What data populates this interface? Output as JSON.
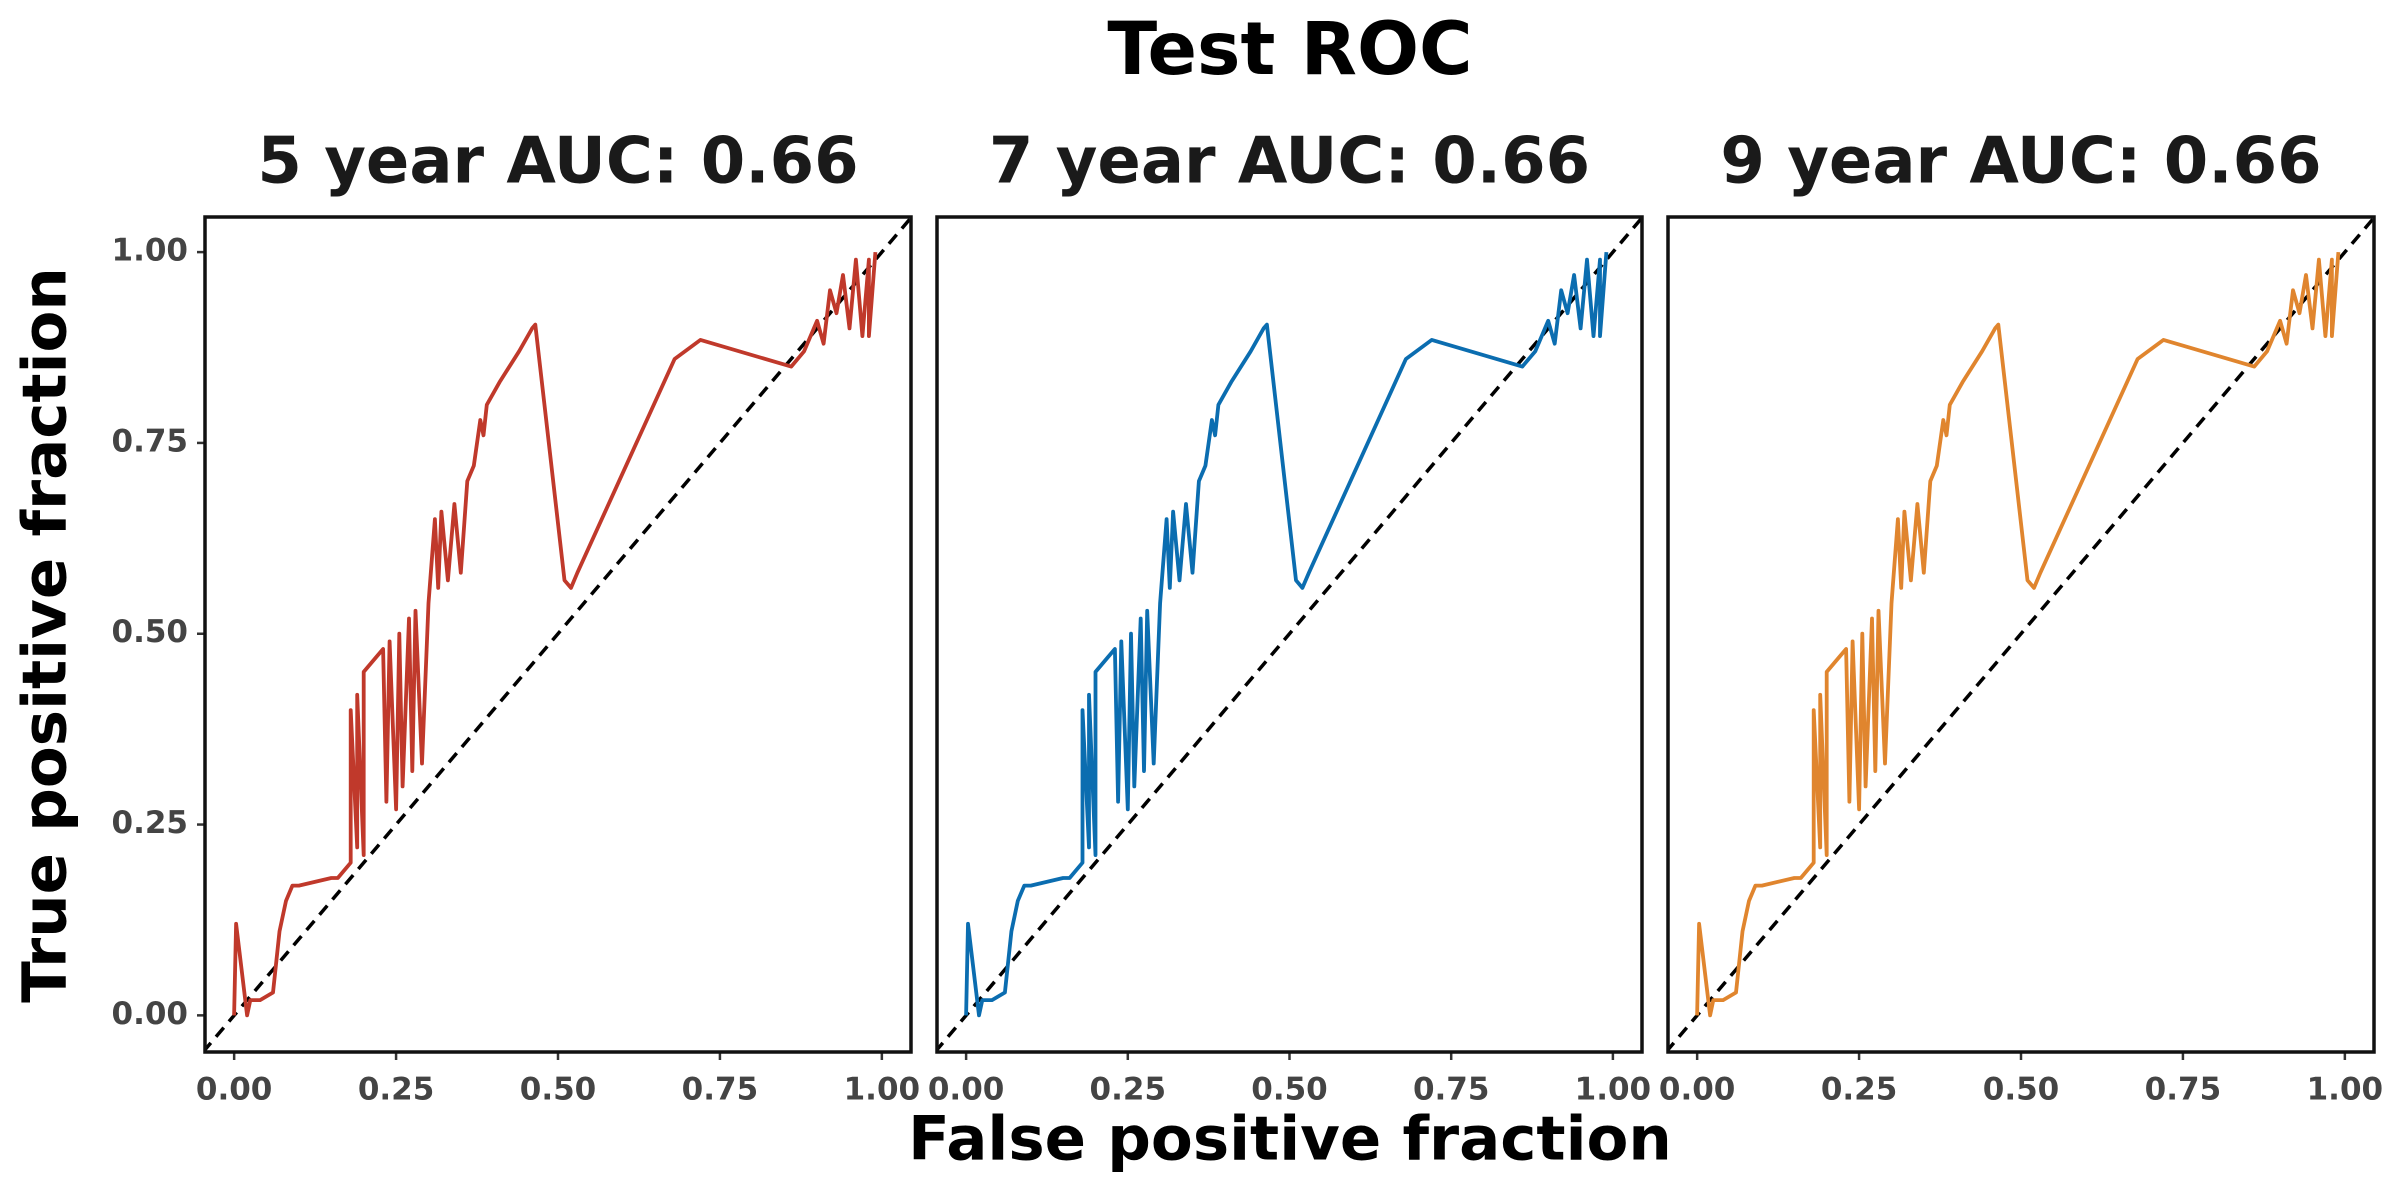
{
  "title": "Test ROC",
  "x_label": "False positive fraction",
  "y_label": "True positive fraction",
  "chart_data": [
    {
      "type": "line",
      "title": "5 year AUC: 0.66",
      "color": "#c0392b",
      "x": [
        0,
        0.003,
        0.02,
        0.025,
        0.04,
        0.06,
        0.07,
        0.08,
        0.09,
        0.1,
        0.15,
        0.16,
        0.18,
        0.18,
        0.19,
        0.19,
        0.2,
        0.2,
        0.22,
        0.23,
        0.235,
        0.24,
        0.25,
        0.255,
        0.26,
        0.27,
        0.275,
        0.28,
        0.29,
        0.3,
        0.31,
        0.315,
        0.32,
        0.33,
        0.34,
        0.35,
        0.36,
        0.37,
        0.38,
        0.385,
        0.39,
        0.41,
        0.44,
        0.46,
        0.465,
        0.51,
        0.52,
        0.53,
        0.68,
        0.72,
        0.86,
        0.88,
        0.9,
        0.91,
        0.92,
        0.93,
        0.94,
        0.95,
        0.96,
        0.97,
        0.98,
        0.98,
        0.99
      ],
      "values": [
        0,
        0.12,
        0.0,
        0.02,
        0.02,
        0.03,
        0.11,
        0.15,
        0.17,
        0.17,
        0.18,
        0.18,
        0.2,
        0.4,
        0.22,
        0.42,
        0.21,
        0.45,
        0.47,
        0.48,
        0.28,
        0.49,
        0.27,
        0.5,
        0.3,
        0.52,
        0.32,
        0.53,
        0.33,
        0.54,
        0.65,
        0.56,
        0.66,
        0.57,
        0.67,
        0.58,
        0.7,
        0.72,
        0.78,
        0.76,
        0.8,
        0.83,
        0.87,
        0.9,
        0.905,
        0.57,
        0.56,
        0.58,
        0.86,
        0.885,
        0.85,
        0.87,
        0.91,
        0.88,
        0.95,
        0.92,
        0.97,
        0.9,
        0.99,
        0.89,
        0.99,
        0.89,
        1.0
      ],
      "xlim": [
        -0.045,
        1.045
      ],
      "ylim": [
        -0.048,
        1.046
      ],
      "xticks": [
        {
          "value": 0,
          "label": "0.00"
        },
        {
          "value": 0.25,
          "label": "0.25"
        },
        {
          "value": 0.5,
          "label": "0.50"
        },
        {
          "value": 0.75,
          "label": "0.75"
        },
        {
          "value": 1,
          "label": "1.00"
        }
      ],
      "yticks": [
        {
          "value": 0,
          "label": "0.00"
        },
        {
          "value": 0.25,
          "label": "0.25"
        },
        {
          "value": 0.5,
          "label": "0.50"
        },
        {
          "value": 0.75,
          "label": "0.75"
        },
        {
          "value": 1,
          "label": "1.00"
        }
      ]
    },
    {
      "type": "line",
      "title": "7 year AUC: 0.66",
      "color": "#0b6db0",
      "x": [
        0,
        0.003,
        0.02,
        0.025,
        0.04,
        0.06,
        0.07,
        0.08,
        0.09,
        0.1,
        0.15,
        0.16,
        0.18,
        0.18,
        0.19,
        0.19,
        0.2,
        0.2,
        0.22,
        0.23,
        0.235,
        0.24,
        0.25,
        0.255,
        0.26,
        0.27,
        0.275,
        0.28,
        0.29,
        0.3,
        0.31,
        0.315,
        0.32,
        0.33,
        0.34,
        0.35,
        0.36,
        0.37,
        0.38,
        0.385,
        0.39,
        0.41,
        0.44,
        0.46,
        0.465,
        0.51,
        0.52,
        0.53,
        0.68,
        0.72,
        0.86,
        0.88,
        0.9,
        0.91,
        0.92,
        0.93,
        0.94,
        0.95,
        0.96,
        0.97,
        0.98,
        0.98,
        0.99
      ],
      "values": [
        0,
        0.12,
        0.0,
        0.02,
        0.02,
        0.03,
        0.11,
        0.15,
        0.17,
        0.17,
        0.18,
        0.18,
        0.2,
        0.4,
        0.22,
        0.42,
        0.21,
        0.45,
        0.47,
        0.48,
        0.28,
        0.49,
        0.27,
        0.5,
        0.3,
        0.52,
        0.32,
        0.53,
        0.33,
        0.54,
        0.65,
        0.56,
        0.66,
        0.57,
        0.67,
        0.58,
        0.7,
        0.72,
        0.78,
        0.76,
        0.8,
        0.83,
        0.87,
        0.9,
        0.905,
        0.57,
        0.56,
        0.58,
        0.86,
        0.885,
        0.85,
        0.87,
        0.91,
        0.88,
        0.95,
        0.92,
        0.97,
        0.9,
        0.99,
        0.89,
        0.99,
        0.89,
        1.0
      ],
      "xlim": [
        -0.045,
        1.045
      ],
      "ylim": [
        -0.048,
        1.046
      ],
      "xticks": [
        {
          "value": 0,
          "label": "0.00"
        },
        {
          "value": 0.25,
          "label": "0.25"
        },
        {
          "value": 0.5,
          "label": "0.50"
        },
        {
          "value": 0.75,
          "label": "0.75"
        },
        {
          "value": 1,
          "label": "1.00"
        }
      ]
    },
    {
      "type": "line",
      "title": "9 year AUC: 0.66",
      "color": "#e0852e",
      "x": [
        0,
        0.003,
        0.02,
        0.025,
        0.04,
        0.06,
        0.07,
        0.08,
        0.09,
        0.1,
        0.15,
        0.16,
        0.18,
        0.18,
        0.19,
        0.19,
        0.2,
        0.2,
        0.22,
        0.23,
        0.235,
        0.24,
        0.25,
        0.255,
        0.26,
        0.27,
        0.275,
        0.28,
        0.29,
        0.3,
        0.31,
        0.315,
        0.32,
        0.33,
        0.34,
        0.35,
        0.36,
        0.37,
        0.38,
        0.385,
        0.39,
        0.41,
        0.44,
        0.46,
        0.465,
        0.51,
        0.52,
        0.53,
        0.68,
        0.72,
        0.86,
        0.88,
        0.9,
        0.91,
        0.92,
        0.93,
        0.94,
        0.95,
        0.96,
        0.97,
        0.98,
        0.98,
        0.99
      ],
      "values": [
        0,
        0.12,
        0.0,
        0.02,
        0.02,
        0.03,
        0.11,
        0.15,
        0.17,
        0.17,
        0.18,
        0.18,
        0.2,
        0.4,
        0.22,
        0.42,
        0.21,
        0.45,
        0.47,
        0.48,
        0.28,
        0.49,
        0.27,
        0.5,
        0.3,
        0.52,
        0.32,
        0.53,
        0.33,
        0.54,
        0.65,
        0.56,
        0.66,
        0.57,
        0.67,
        0.58,
        0.7,
        0.72,
        0.78,
        0.76,
        0.8,
        0.83,
        0.87,
        0.9,
        0.905,
        0.57,
        0.56,
        0.58,
        0.86,
        0.885,
        0.85,
        0.87,
        0.91,
        0.88,
        0.95,
        0.92,
        0.97,
        0.9,
        0.99,
        0.89,
        0.99,
        0.89,
        1.0
      ],
      "xlim": [
        -0.045,
        1.045
      ],
      "ylim": [
        -0.048,
        1.046
      ],
      "xticks": [
        {
          "value": 0,
          "label": "0.00"
        },
        {
          "value": 0.25,
          "label": "0.25"
        },
        {
          "value": 0.5,
          "label": "0.50"
        },
        {
          "value": 0.75,
          "label": "0.75"
        },
        {
          "value": 1,
          "label": "1.00"
        }
      ]
    }
  ]
}
